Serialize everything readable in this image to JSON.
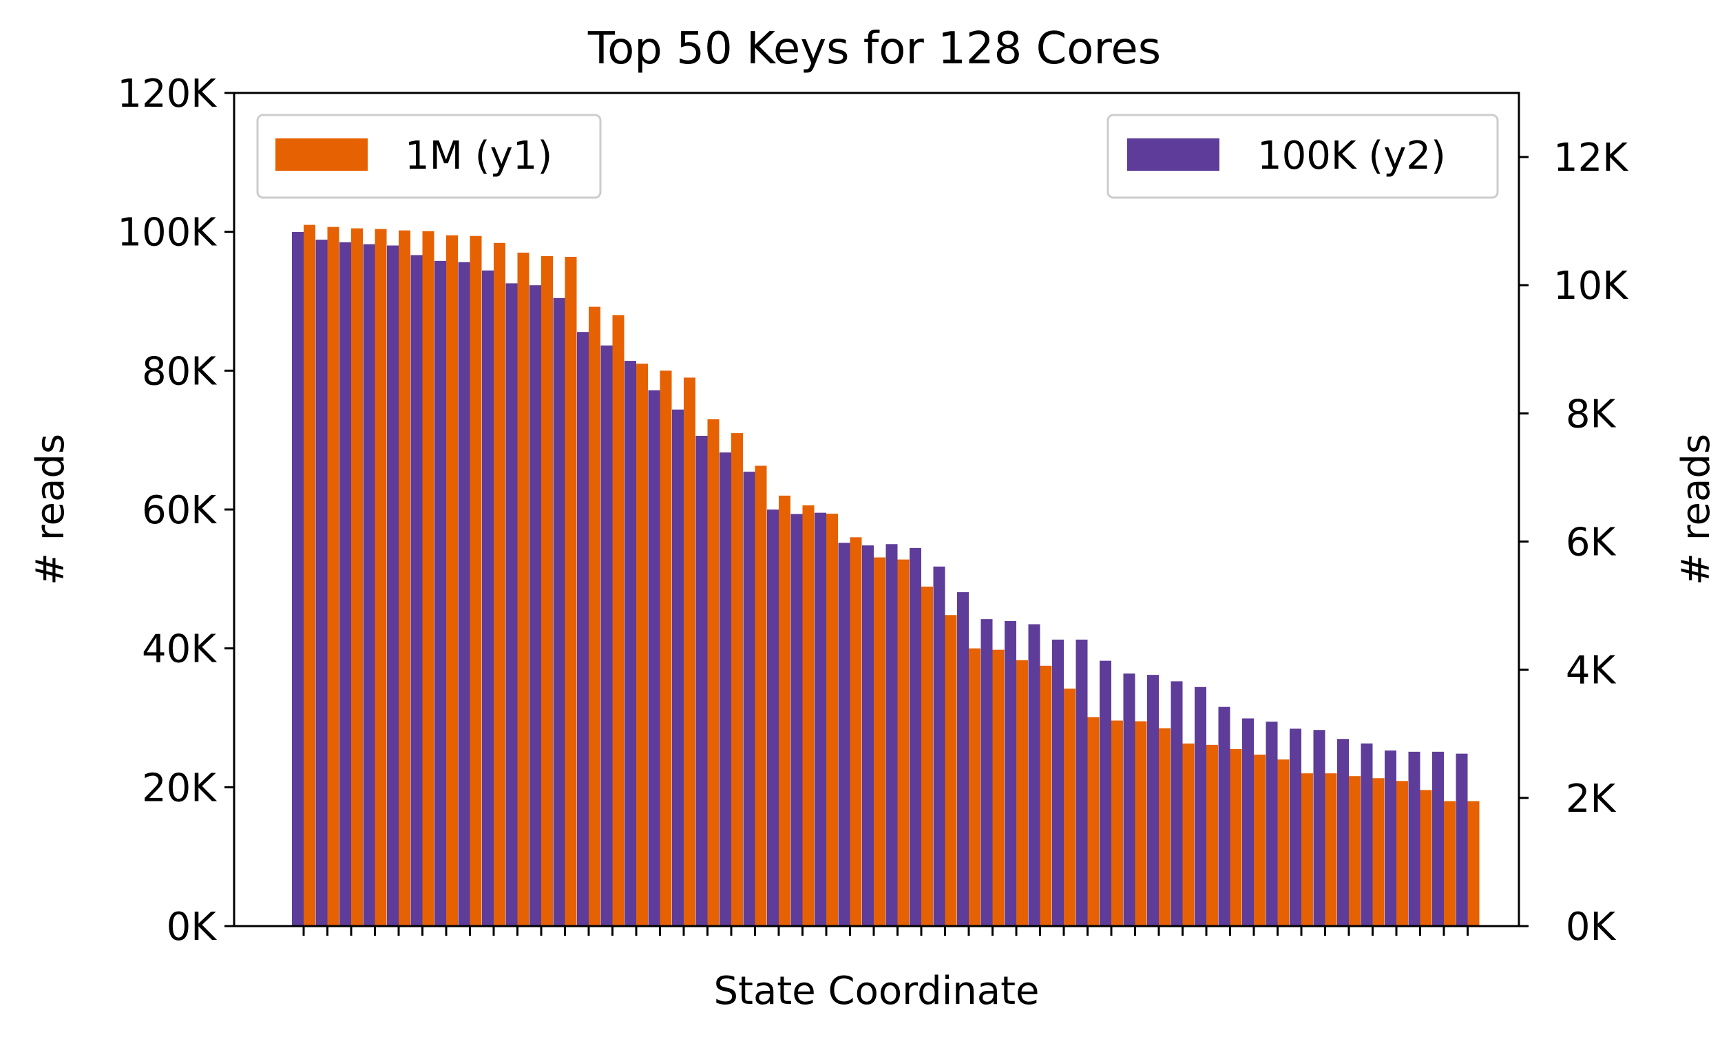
{
  "chart_data": {
    "type": "bar",
    "title": "Top 50 Keys for 128 Cores",
    "xlabel": "State Coordinate",
    "ylabel_left": "# reads",
    "ylabel_right": "# reads",
    "ylim_left": [
      0,
      120000
    ],
    "ylim_right": [
      0,
      13000
    ],
    "yticks_left": [
      {
        "value": 0,
        "label": "0K"
      },
      {
        "value": 20000,
        "label": "20K"
      },
      {
        "value": 40000,
        "label": "40K"
      },
      {
        "value": 60000,
        "label": "60K"
      },
      {
        "value": 80000,
        "label": "80K"
      },
      {
        "value": 100000,
        "label": "100K"
      },
      {
        "value": 120000,
        "label": "120K"
      }
    ],
    "yticks_right": [
      {
        "value": 0,
        "label": "0K"
      },
      {
        "value": 2000,
        "label": "2K"
      },
      {
        "value": 4000,
        "label": "4K"
      },
      {
        "value": 6000,
        "label": "6K"
      },
      {
        "value": 8000,
        "label": "8K"
      },
      {
        "value": 10000,
        "label": "10K"
      },
      {
        "value": 12000,
        "label": "12K"
      }
    ],
    "grid": false,
    "legend": [
      {
        "label": "1M (y1)",
        "placement": "upper-left"
      },
      {
        "label": "100K (y2)",
        "placement": "upper-right"
      }
    ],
    "series": [
      {
        "name": "1M (y1)",
        "axis": "left",
        "color": "#e66101",
        "values": [
          101000,
          100700,
          100500,
          100400,
          100200,
          100100,
          99500,
          99400,
          98400,
          97000,
          96500,
          96400,
          89200,
          88000,
          81000,
          80000,
          79000,
          73000,
          71000,
          66300,
          62000,
          60600,
          59400,
          56000,
          53100,
          52800,
          48900,
          44800,
          40000,
          39800,
          38300,
          37500,
          34200,
          30100,
          29600,
          29500,
          28500,
          26300,
          26100,
          25500,
          24700,
          24000,
          22000,
          22000,
          21600,
          21300,
          20900,
          19600,
          18000,
          18000
        ]
      },
      {
        "name": "100K (y2)",
        "axis": "right",
        "color": "#5e3c99",
        "values": [
          10830,
          10710,
          10670,
          10640,
          10620,
          10470,
          10380,
          10360,
          10230,
          10030,
          10000,
          9800,
          9270,
          9060,
          8820,
          8360,
          8060,
          7650,
          7390,
          7090,
          6500,
          6430,
          6450,
          5980,
          5940,
          5960,
          5900,
          5610,
          5210,
          4790,
          4760,
          4710,
          4470,
          4470,
          4140,
          3940,
          3920,
          3820,
          3730,
          3420,
          3240,
          3190,
          3080,
          3060,
          2920,
          2850,
          2740,
          2720,
          2720,
          2690
        ]
      }
    ]
  }
}
